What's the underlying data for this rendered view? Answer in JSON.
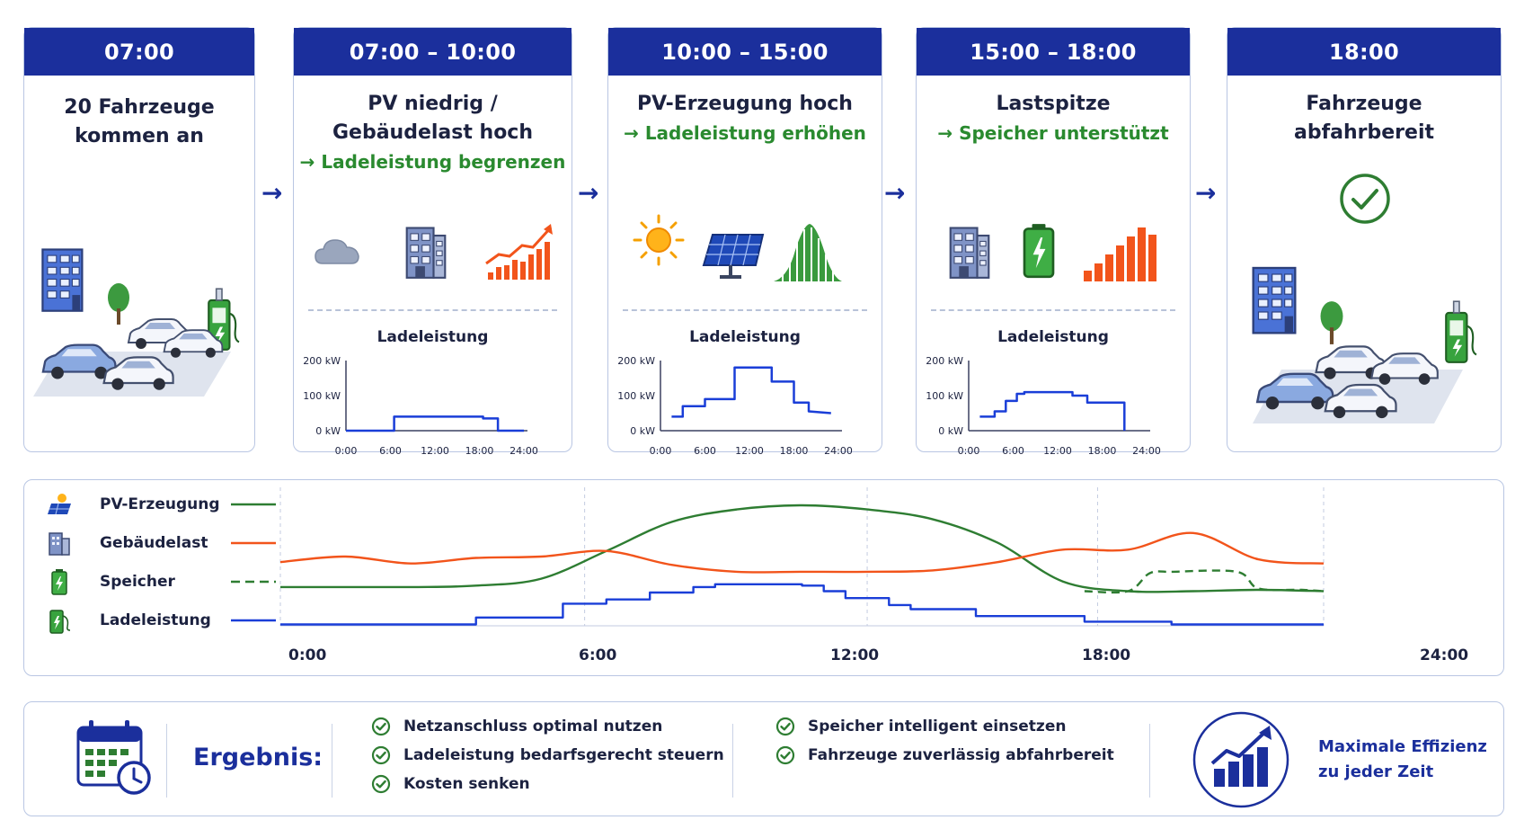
{
  "cards": [
    {
      "time": "07:00",
      "title_lines": [
        "20 Fahrzeuge",
        "kommen an"
      ],
      "subtitle": ""
    },
    {
      "time": "07:00 – 10:00",
      "title_lines": [
        "PV niedrig /",
        "Gebäudelast hoch"
      ],
      "subtitle": "→ Ladeleistung begrenzen",
      "icons": [
        "cloud-icon",
        "building-icon",
        "rising-bars-icon"
      ]
    },
    {
      "time": "10:00 – 15:00",
      "title_lines": [
        "PV-Erzeugung hoch"
      ],
      "subtitle": "→ Ladeleistung erhöhen",
      "icons": [
        "sun-icon",
        "solar-panel-icon",
        "bell-curve-bars-icon"
      ]
    },
    {
      "time": "15:00 – 18:00",
      "title_lines": [
        "Lastspitze"
      ],
      "subtitle": "→ Speicher unterstützt",
      "icons": [
        "building-icon",
        "battery-icon",
        "peak-bars-icon"
      ]
    },
    {
      "time": "18:00",
      "title_lines": [
        "Fahrzeuge",
        "abfahrbereit"
      ],
      "subtitle": "",
      "icons": [
        "check-circle-icon"
      ]
    }
  ],
  "mini_charts_title": "Ladeleistung",
  "mini_charts": {
    "y_ticks": [
      "200 kW",
      "100 kW",
      "0 kW"
    ],
    "x_ticks": [
      "0:00",
      "6:00",
      "12:00",
      "18:00",
      "24:00"
    ]
  },
  "chart_data": [
    {
      "type": "line",
      "title": "Ladeleistung",
      "xlabel": "",
      "ylabel": "",
      "xlim": [
        0,
        24
      ],
      "ylim": [
        0,
        200
      ],
      "series": [
        {
          "x": [
            0,
            6.5,
            6.5,
            18.5,
            18.5,
            20.5,
            20.5,
            24
          ],
          "values": [
            0,
            0,
            40,
            40,
            35,
            35,
            0,
            0
          ]
        }
      ]
    },
    {
      "type": "line",
      "title": "Ladeleistung",
      "xlabel": "",
      "ylabel": "",
      "xlim": [
        0,
        24
      ],
      "ylim": [
        0,
        200
      ],
      "series": [
        {
          "x": [
            1.5,
            3,
            3,
            6,
            6,
            10,
            10,
            15,
            15,
            18,
            18,
            20,
            20,
            23
          ],
          "values": [
            40,
            40,
            70,
            70,
            90,
            90,
            180,
            180,
            140,
            140,
            80,
            80,
            55,
            50
          ]
        }
      ]
    },
    {
      "type": "line",
      "title": "Ladeleistung",
      "xlabel": "",
      "ylabel": "",
      "xlim": [
        0,
        24
      ],
      "ylim": [
        0,
        200
      ],
      "series": [
        {
          "x": [
            1.5,
            3.5,
            3.5,
            5,
            5,
            6.5,
            6.5,
            7.5,
            7.5,
            14,
            14,
            16,
            16,
            21,
            21
          ],
          "values": [
            40,
            40,
            55,
            55,
            85,
            85,
            105,
            105,
            110,
            110,
            100,
            100,
            80,
            80,
            0
          ]
        }
      ]
    },
    {
      "type": "line",
      "xlim": [
        0,
        24
      ],
      "x_ticks": [
        "0:00",
        "6:00",
        "12:00",
        "18:00",
        "24:00"
      ],
      "legend_position": "left",
      "series": [
        {
          "name": "PV-Erzeugung",
          "color": "#2e7d32",
          "style": "solid",
          "x": [
            0,
            3,
            4.5,
            6,
            7.5,
            9,
            10.5,
            12,
            13.5,
            15,
            16.5,
            18,
            19.5,
            21,
            22.5,
            24
          ],
          "values": [
            0.28,
            0.28,
            0.29,
            0.34,
            0.54,
            0.75,
            0.84,
            0.87,
            0.84,
            0.77,
            0.6,
            0.32,
            0.25,
            0.25,
            0.26,
            0.25
          ]
        },
        {
          "name": "Gebäudelast",
          "color": "#f2541b",
          "style": "solid",
          "x": [
            0,
            1.5,
            3,
            4.5,
            6,
            7.5,
            9,
            10.5,
            12,
            13.5,
            15,
            16.5,
            18,
            19.5,
            21,
            22.5,
            24
          ],
          "values": [
            0.46,
            0.5,
            0.45,
            0.49,
            0.5,
            0.54,
            0.44,
            0.39,
            0.39,
            0.39,
            0.4,
            0.46,
            0.55,
            0.55,
            0.67,
            0.48,
            0.45
          ]
        },
        {
          "name": "Speicher",
          "color": "#2e7d32",
          "style": "dashed",
          "x": [
            18.5,
            19.5,
            20,
            20.5,
            22,
            22.5,
            23.5,
            24
          ],
          "values": [
            0.25,
            0.25,
            0.38,
            0.39,
            0.39,
            0.27,
            0.26,
            0.25
          ]
        },
        {
          "name": "Ladeleistung",
          "color": "#1a3ed8",
          "style": "solid",
          "x": [
            0,
            4.5,
            4.5,
            6.5,
            6.5,
            7.5,
            7.5,
            8.5,
            8.5,
            9.5,
            9.5,
            10,
            10,
            12,
            12,
            12.5,
            12.5,
            13,
            13,
            14,
            14,
            14.5,
            14.5,
            16,
            16,
            18.5,
            18.5,
            20.5,
            20.5,
            24
          ],
          "values": [
            0.01,
            0.01,
            0.06,
            0.06,
            0.16,
            0.16,
            0.19,
            0.19,
            0.24,
            0.24,
            0.28,
            0.28,
            0.3,
            0.3,
            0.29,
            0.29,
            0.25,
            0.25,
            0.2,
            0.2,
            0.15,
            0.15,
            0.12,
            0.12,
            0.07,
            0.07,
            0.03,
            0.03,
            0.01,
            0.01
          ]
        }
      ]
    }
  ],
  "result": {
    "title": "Ergebnis:",
    "bullets_left": [
      "Netzanschluss optimal nutzen",
      "Ladeleistung bedarfsgerecht steuern",
      "Kosten senken"
    ],
    "bullets_right": [
      "Speicher intelligent einsetzen",
      "Fahrzeuge zuverlässig abfahrbereit"
    ],
    "efficiency_lines": [
      "Maximale Effizienz",
      "zu jeder Zeit"
    ]
  },
  "colors": {
    "primary": "#1b2f9c",
    "green": "#2e7d32",
    "orange": "#f2541b",
    "blue": "#1a3ed8"
  }
}
